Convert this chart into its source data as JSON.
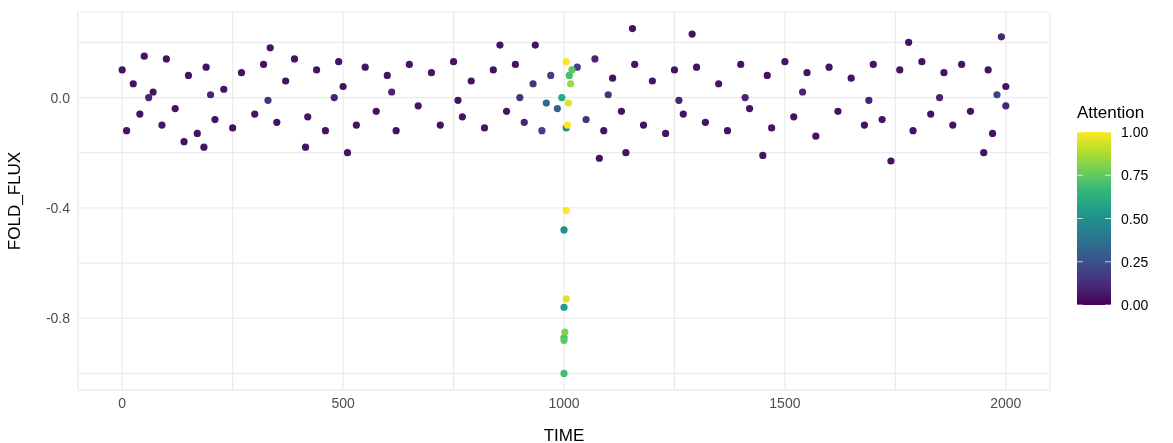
{
  "chart_data": {
    "type": "scatter",
    "xlabel": "TIME",
    "ylabel": "FOLD_FLUX",
    "clabel": "Attention",
    "marker": "circle",
    "grid": true,
    "xlim": [
      -100,
      2100
    ],
    "xticks": [
      0,
      {
        "value": 250,
        "label": null
      },
      500,
      {
        "value": 750,
        "label": null
      },
      1000,
      {
        "value": 1250,
        "label": null
      },
      1500,
      {
        "value": 1750,
        "label": null
      },
      2000
    ],
    "ylim": [
      -1.06,
      0.31
    ],
    "yticks": [
      {
        "value": -1.0,
        "label": null
      },
      {
        "value": -0.8,
        "label": "-0.8"
      },
      {
        "value": -0.6,
        "label": null
      },
      {
        "value": -0.4,
        "label": "-0.4"
      },
      {
        "value": -0.2,
        "label": null
      },
      {
        "value": 0,
        "label": "0.0"
      },
      {
        "value": 0.2,
        "label": null
      }
    ],
    "clim": [
      0,
      1
    ],
    "cticks": [
      {
        "value": 0,
        "label": "0.00"
      },
      {
        "value": 0.25,
        "label": "0.25"
      },
      {
        "value": 0.5,
        "label": "0.50"
      },
      {
        "value": 0.75,
        "label": "0.75"
      },
      {
        "value": 1,
        "label": "1.00"
      }
    ],
    "x": [
      0,
      10,
      25,
      40,
      50,
      60,
      70,
      90,
      100,
      120,
      140,
      150,
      170,
      185,
      190,
      200,
      210,
      230,
      250,
      270,
      300,
      320,
      330,
      335,
      350,
      370,
      390,
      415,
      420,
      440,
      460,
      480,
      490,
      500,
      510,
      530,
      550,
      575,
      600,
      610,
      620,
      650,
      670,
      700,
      720,
      750,
      760,
      770,
      790,
      820,
      840,
      855,
      870,
      890,
      900,
      910,
      930,
      935,
      950,
      960,
      970,
      985,
      1030,
      1050,
      1070,
      1080,
      1090,
      1100,
      1110,
      1130,
      1140,
      1155,
      1160,
      1180,
      1200,
      1230,
      1250,
      1260,
      1270,
      1290,
      1300,
      1320,
      1350,
      1370,
      1400,
      1410,
      1420,
      1450,
      1460,
      1470,
      1500,
      1520,
      1540,
      1550,
      1570,
      1600,
      1620,
      1650,
      1680,
      1690,
      1700,
      1720,
      1740,
      1760,
      1780,
      1790,
      1810,
      1830,
      1850,
      1860,
      1880,
      1900,
      1920,
      1950,
      1960,
      1970,
      1980,
      1990,
      2000,
      2000,
      995,
      1000,
      1000,
      1000,
      1000,
      1000,
      1002,
      1005,
      1005,
      1005,
      1005,
      1008,
      1010,
      1012,
      1018,
      1015
    ],
    "values": [
      0.1,
      -0.12,
      0.05,
      -0.06,
      0.15,
      0.0,
      0.02,
      -0.1,
      0.14,
      -0.04,
      -0.16,
      0.08,
      -0.13,
      -0.18,
      0.11,
      0.01,
      -0.08,
      0.03,
      -0.11,
      0.09,
      -0.06,
      0.12,
      -0.01,
      0.18,
      -0.09,
      0.06,
      0.14,
      -0.18,
      -0.07,
      0.1,
      -0.12,
      0.0,
      0.13,
      0.04,
      -0.2,
      -0.1,
      0.11,
      -0.05,
      0.08,
      0.02,
      -0.12,
      0.12,
      -0.03,
      0.09,
      -0.1,
      0.13,
      -0.01,
      -0.07,
      0.06,
      -0.11,
      0.1,
      0.19,
      -0.05,
      0.12,
      0.0,
      -0.09,
      0.05,
      0.19,
      -0.12,
      -0.02,
      0.08,
      -0.04,
      0.11,
      -0.08,
      0.14,
      -0.22,
      -0.12,
      0.01,
      0.07,
      -0.05,
      -0.2,
      0.25,
      0.12,
      -0.1,
      0.06,
      -0.13,
      0.1,
      -0.01,
      -0.06,
      0.23,
      0.11,
      -0.09,
      0.05,
      -0.12,
      0.12,
      0.0,
      -0.04,
      -0.21,
      0.08,
      -0.11,
      0.13,
      -0.07,
      0.02,
      0.09,
      -0.14,
      0.11,
      -0.05,
      0.07,
      -0.1,
      -0.01,
      0.12,
      -0.08,
      -0.23,
      0.1,
      0.2,
      -0.12,
      0.13,
      -0.06,
      0.0,
      0.09,
      -0.1,
      0.12,
      -0.05,
      -0.2,
      0.1,
      -0.13,
      0.01,
      0.22,
      0.04,
      -0.03,
      0.0,
      -0.48,
      -0.76,
      -1.0,
      -0.87,
      -0.88,
      -0.85,
      -0.11,
      -0.73,
      -0.41,
      0.13,
      -0.1,
      -0.02,
      0.08,
      0.1,
      0.05
    ],
    "cvalues": [
      0.05,
      0.05,
      0.05,
      0.05,
      0.05,
      0.1,
      0.05,
      0.05,
      0.05,
      0.05,
      0.05,
      0.05,
      0.05,
      0.05,
      0.05,
      0.1,
      0.05,
      0.05,
      0.05,
      0.05,
      0.05,
      0.05,
      0.15,
      0.05,
      0.05,
      0.05,
      0.05,
      0.05,
      0.05,
      0.05,
      0.05,
      0.1,
      0.05,
      0.05,
      0.05,
      0.05,
      0.05,
      0.05,
      0.05,
      0.1,
      0.05,
      0.05,
      0.05,
      0.05,
      0.05,
      0.05,
      0.05,
      0.05,
      0.05,
      0.05,
      0.05,
      0.05,
      0.05,
      0.05,
      0.15,
      0.1,
      0.15,
      0.05,
      0.2,
      0.35,
      0.2,
      0.3,
      0.2,
      0.15,
      0.1,
      0.05,
      0.05,
      0.15,
      0.05,
      0.05,
      0.05,
      0.05,
      0.05,
      0.05,
      0.05,
      0.05,
      0.05,
      0.1,
      0.05,
      0.05,
      0.05,
      0.05,
      0.05,
      0.05,
      0.05,
      0.1,
      0.05,
      0.05,
      0.05,
      0.05,
      0.05,
      0.05,
      0.1,
      0.05,
      0.05,
      0.05,
      0.05,
      0.05,
      0.05,
      0.1,
      0.05,
      0.05,
      0.05,
      0.05,
      0.05,
      0.05,
      0.05,
      0.05,
      0.1,
      0.05,
      0.05,
      0.05,
      0.05,
      0.05,
      0.05,
      0.05,
      0.2,
      0.1,
      0.05,
      0.1,
      0.6,
      0.5,
      0.55,
      0.7,
      0.7,
      0.75,
      0.8,
      0.5,
      0.95,
      1.0,
      1.0,
      1.0,
      0.95,
      0.7,
      0.75,
      0.85
    ]
  }
}
